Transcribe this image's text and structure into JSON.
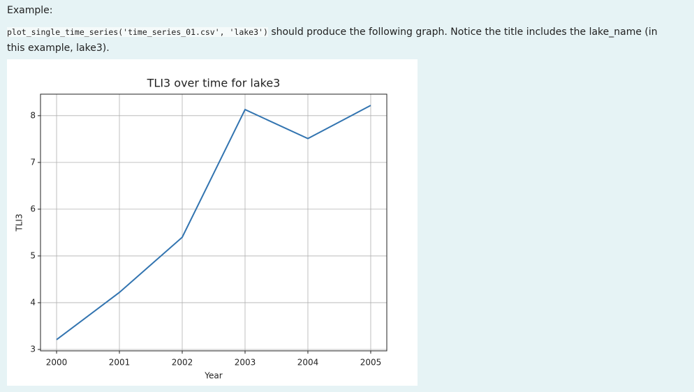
{
  "example_label": "Example:",
  "paragraph": {
    "code": "plot_single_time_series('time_series_01.csv', 'lake3')",
    "text": " should produce the following graph. Notice the title includes the lake_name (in this example, lake3)."
  },
  "chart_data": {
    "type": "line",
    "title": "TLI3 over time for lake3",
    "x_label": "Year",
    "y_label": "TLI3",
    "x": [
      2000,
      2001,
      2002,
      2003,
      2004,
      2005
    ],
    "values": [
      3.21,
      4.22,
      5.4,
      8.13,
      7.51,
      8.22
    ],
    "color": "#3274b0",
    "xlim": [
      1999.744,
      2005.256
    ],
    "xticks": [
      2000,
      2001,
      2002,
      2003,
      2004,
      2005
    ],
    "ylim": [
      2.97,
      8.46
    ],
    "yticks": [
      3,
      4,
      5,
      6,
      7,
      8
    ],
    "grid": true
  }
}
